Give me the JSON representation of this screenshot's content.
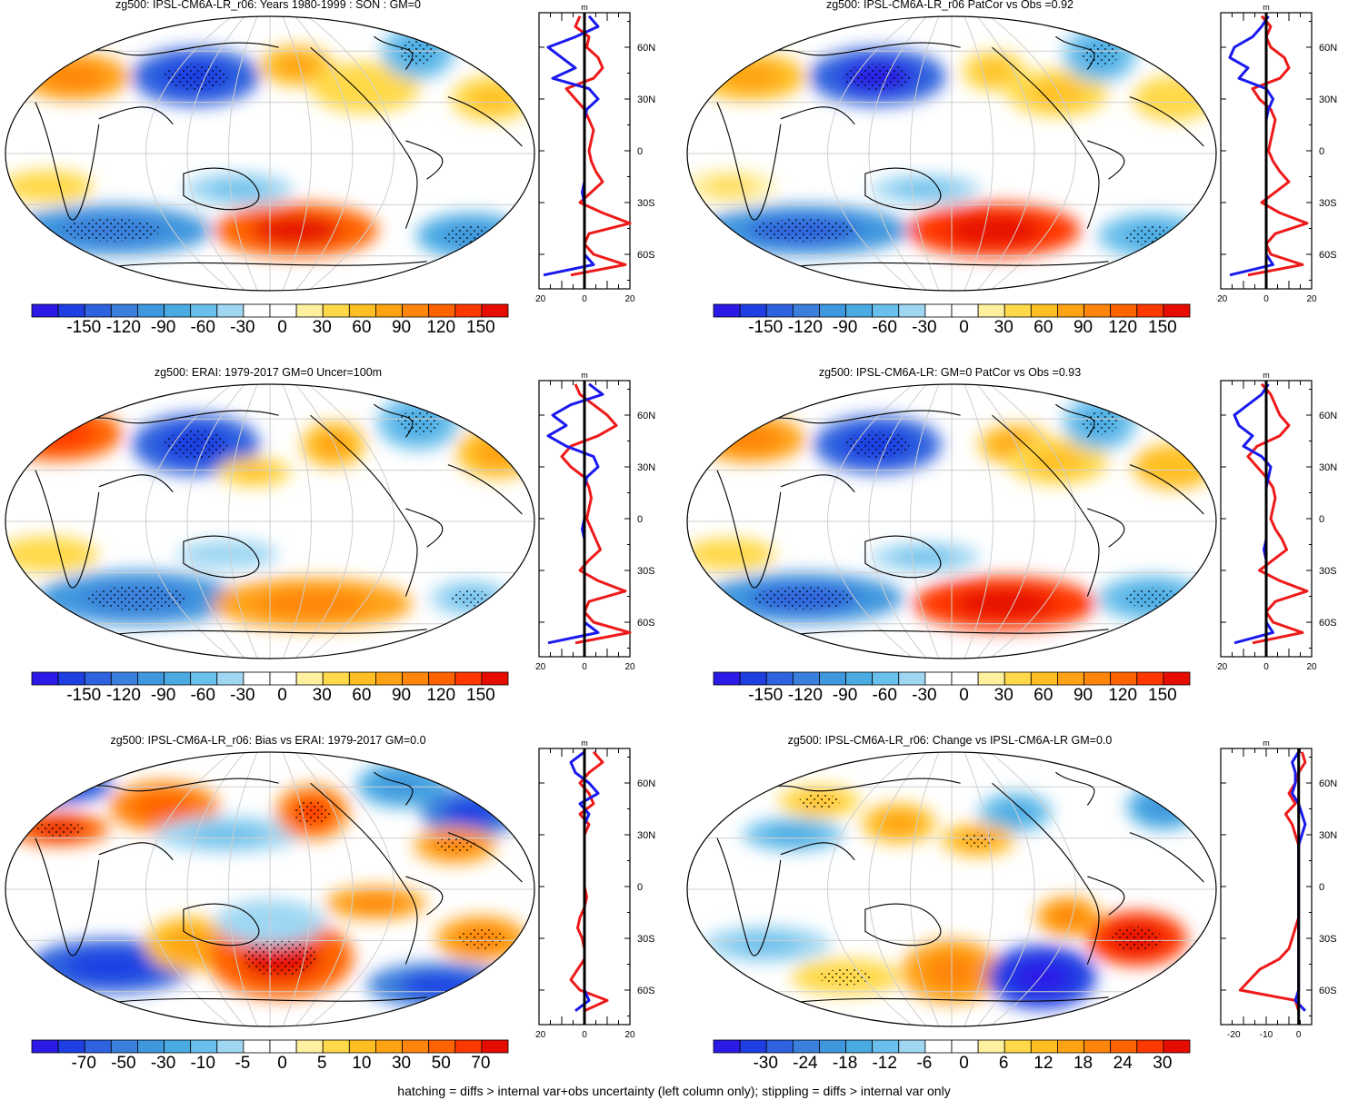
{
  "footer": "hatching = diffs > internal var+obs uncertainty (left column only); stippling = diffs > internal var only",
  "palette": [
    "#2b1ae6",
    "#1f3fe3",
    "#2e62de",
    "#3a7fdb",
    "#3f97de",
    "#4aabe3",
    "#6ac0ec",
    "#9fd7f3",
    "#ffffff",
    "#ffffff",
    "#fff0a0",
    "#ffd94a",
    "#ffbf22",
    "#ffa214",
    "#ff850c",
    "#ff6300",
    "#ff3800",
    "#e60d00"
  ],
  "line_colors": {
    "left_profile": "#1a1aee",
    "right_profile": "#ee1a1a",
    "zero": "#000000"
  },
  "chart_data": [
    {
      "type": "heatmap",
      "title": "zg500: IPSL-CM6A-LR_r06: Years 1980-1999 : SON : GM=0",
      "colorbar_ticks": [
        "-150",
        "-120",
        "-90",
        "-60",
        "-30",
        "0",
        "30",
        "60",
        "90",
        "120",
        "150"
      ],
      "zonal": {
        "unit": "m",
        "xticks": [
          "-20",
          "0",
          "20"
        ],
        "xlim": [
          -20,
          20
        ],
        "ylabels": [
          "60N",
          "30N",
          "0",
          "30S",
          "60S"
        ],
        "lat": [
          78,
          72,
          66,
          60,
          54,
          48,
          42,
          36,
          30,
          24,
          18,
          12,
          6,
          0,
          -6,
          -12,
          -18,
          -24,
          -30,
          -36,
          -42,
          -48,
          -54,
          -60,
          -66,
          -72
        ],
        "left": [
          2,
          6,
          -4,
          -16,
          -10,
          -4,
          -14,
          2,
          6,
          1,
          0,
          0,
          0,
          0,
          0,
          0,
          0,
          -1,
          0,
          0,
          0,
          0,
          0,
          0,
          4,
          -18
        ],
        "right": [
          -2,
          -4,
          2,
          1,
          6,
          8,
          4,
          -8,
          -4,
          0,
          2,
          4,
          3,
          2,
          3,
          5,
          8,
          3,
          -2,
          8,
          20,
          2,
          0,
          4,
          18,
          -6
        ]
      }
    },
    {
      "type": "heatmap",
      "title": "zg500: IPSL-CM6A-LR_r06 PatCor vs Obs =0.92",
      "colorbar_ticks": [
        "-150",
        "-120",
        "-90",
        "-60",
        "-30",
        "0",
        "30",
        "60",
        "90",
        "120",
        "150"
      ],
      "zonal": {
        "unit": "m",
        "xticks": [
          "-20",
          "0",
          "20"
        ],
        "xlim": [
          -20,
          20
        ],
        "ylabels": [
          "60N",
          "30N",
          "0",
          "30S",
          "60S"
        ],
        "lat": [
          78,
          72,
          66,
          60,
          54,
          48,
          42,
          36,
          30,
          24,
          18,
          12,
          6,
          0,
          -6,
          -12,
          -18,
          -24,
          -30,
          -36,
          -42,
          -48,
          -54,
          -60,
          -66,
          -72
        ],
        "left": [
          1,
          -2,
          -6,
          -14,
          -16,
          -8,
          -12,
          0,
          3,
          1,
          0,
          0,
          0,
          0,
          0,
          0,
          0,
          0,
          0,
          0,
          0,
          0,
          0,
          0,
          3,
          -16
        ],
        "right": [
          -2,
          2,
          0,
          2,
          8,
          10,
          6,
          -6,
          -3,
          2,
          4,
          3,
          2,
          1,
          3,
          6,
          10,
          4,
          -2,
          6,
          18,
          4,
          0,
          2,
          16,
          -8
        ]
      }
    },
    {
      "type": "heatmap",
      "title": "zg500: ERAI: 1979-2017 GM=0 Uncer=100m",
      "colorbar_ticks": [
        "-150",
        "-120",
        "-90",
        "-60",
        "-30",
        "0",
        "30",
        "60",
        "90",
        "120",
        "150"
      ],
      "zonal": {
        "unit": "m",
        "xticks": [
          "-20",
          "0",
          "20"
        ],
        "xlim": [
          -20,
          20
        ],
        "ylabels": [
          "60N",
          "30N",
          "0",
          "30S",
          "60S"
        ],
        "lat": [
          78,
          72,
          66,
          60,
          54,
          48,
          42,
          36,
          30,
          24,
          18,
          12,
          6,
          0,
          -6,
          -12,
          -18,
          -24,
          -30,
          -36,
          -42,
          -48,
          -54,
          -60,
          -66,
          -72
        ],
        "left": [
          2,
          8,
          -6,
          -14,
          -8,
          -16,
          -8,
          4,
          6,
          1,
          0,
          0,
          0,
          0,
          -1,
          0,
          0,
          0,
          0,
          0,
          0,
          0,
          0,
          0,
          6,
          -16
        ],
        "right": [
          -4,
          -2,
          4,
          10,
          14,
          6,
          -6,
          -10,
          -6,
          0,
          2,
          3,
          2,
          1,
          3,
          5,
          7,
          2,
          -2,
          6,
          18,
          2,
          0,
          4,
          20,
          -4
        ]
      }
    },
    {
      "type": "heatmap",
      "title": "zg500: IPSL-CM6A-LR: GM=0 PatCor vs Obs =0.93",
      "colorbar_ticks": [
        "-150",
        "-120",
        "-90",
        "-60",
        "-30",
        "0",
        "30",
        "60",
        "90",
        "120",
        "150"
      ],
      "zonal": {
        "unit": "m",
        "xticks": [
          "-20",
          "0",
          "20"
        ],
        "xlim": [
          -20,
          20
        ],
        "ylabels": [
          "60N",
          "30N",
          "0",
          "30S",
          "60S"
        ],
        "lat": [
          78,
          72,
          66,
          60,
          54,
          48,
          42,
          36,
          30,
          24,
          18,
          12,
          6,
          0,
          -6,
          -12,
          -18,
          -24,
          -30,
          -36,
          -42,
          -48,
          -54,
          -60,
          -66,
          -72
        ],
        "left": [
          1,
          -2,
          -8,
          -14,
          -12,
          -6,
          -10,
          -2,
          2,
          1,
          0,
          0,
          0,
          0,
          0,
          0,
          -1,
          0,
          0,
          0,
          0,
          0,
          0,
          0,
          3,
          -14
        ],
        "right": [
          -2,
          2,
          4,
          6,
          10,
          6,
          -4,
          -8,
          -4,
          0,
          3,
          4,
          3,
          2,
          4,
          7,
          9,
          3,
          -3,
          6,
          18,
          4,
          0,
          3,
          16,
          -6
        ]
      }
    },
    {
      "type": "heatmap",
      "title": "zg500: IPSL-CM6A-LR_r06: Bias vs ERAI: 1979-2017  GM=0.0",
      "colorbar_ticks": [
        "-70",
        "-50",
        "-30",
        "-10",
        "-5",
        "0",
        "5",
        "10",
        "30",
        "50",
        "70"
      ],
      "zonal": {
        "unit": "m",
        "xticks": [
          "-20",
          "0",
          "20"
        ],
        "xlim": [
          -20,
          20
        ],
        "ylabels": [
          "60N",
          "30N",
          "0",
          "30S",
          "60S"
        ],
        "lat": [
          78,
          72,
          66,
          60,
          54,
          48,
          42,
          36,
          30,
          24,
          18,
          12,
          6,
          0,
          -6,
          -12,
          -18,
          -24,
          -30,
          -36,
          -42,
          -48,
          -54,
          -60,
          -66,
          -72
        ],
        "left": [
          0,
          -6,
          -4,
          2,
          6,
          -2,
          2,
          0,
          0,
          0,
          0,
          0,
          0,
          0,
          0,
          0,
          0,
          0,
          0,
          0,
          0,
          0,
          0,
          0,
          2,
          -4
        ],
        "right": [
          4,
          8,
          2,
          -2,
          2,
          4,
          -2,
          2,
          0,
          0,
          0,
          0,
          0,
          0,
          1,
          0,
          -2,
          -3,
          -1,
          0,
          0,
          -3,
          -6,
          -2,
          10,
          0
        ]
      }
    },
    {
      "type": "heatmap",
      "title": "zg500: IPSL-CM6A-LR_r06: Change vs IPSL-CM6A-LR GM=0.0",
      "colorbar_ticks": [
        "-30",
        "-24",
        "-18",
        "-12",
        "-6",
        "0",
        "6",
        "12",
        "18",
        "24",
        "30"
      ],
      "zonal": {
        "unit": "m",
        "xticks": [
          "-20",
          "-10",
          "0"
        ],
        "xlim": [
          -24,
          4
        ],
        "ylabels": [
          "60N",
          "30N",
          "0",
          "30S",
          "60S"
        ],
        "lat": [
          78,
          72,
          66,
          60,
          54,
          48,
          42,
          36,
          30,
          24,
          18,
          12,
          6,
          0,
          -6,
          -12,
          -18,
          -24,
          -30,
          -36,
          -42,
          -48,
          -54,
          -60,
          -66,
          -72
        ],
        "left": [
          0,
          -2,
          -1,
          -1,
          -2,
          0,
          1,
          2,
          1,
          0,
          0,
          0,
          0,
          0,
          0,
          0,
          0,
          0,
          0,
          0,
          0,
          0,
          0,
          0,
          -1,
          2
        ],
        "right": [
          1,
          2,
          0,
          -1,
          -3,
          -1,
          -4,
          -2,
          -1,
          0,
          0,
          0,
          0,
          0,
          0,
          0,
          0,
          -1,
          -2,
          -3,
          -6,
          -12,
          -15,
          -18,
          -1,
          0
        ]
      }
    }
  ]
}
